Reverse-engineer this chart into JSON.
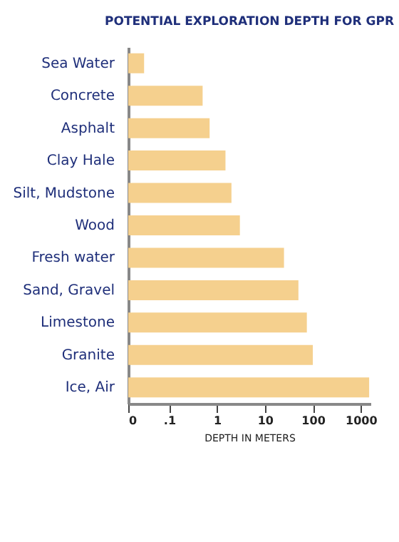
{
  "chart_data": {
    "type": "bar",
    "orientation": "horizontal",
    "log": "x",
    "title": "POTENTIAL EXPLORATION DEPTH FOR GPR",
    "xlabel": "DEPTH IN METERS",
    "categories": [
      "Sea Water",
      "Concrete",
      "Asphalt",
      "Clay Hale",
      "Silt, Mudstone",
      "Wood",
      "Fresh water",
      "Sand, Gravel",
      "Limestone",
      "Granite",
      "Ice, Air"
    ],
    "values": [
      0.03,
      0.5,
      0.7,
      1.5,
      2,
      3,
      25,
      50,
      75,
      100,
      1500
    ],
    "color": "#f5d08e",
    "xlim": [
      0.014,
      1600
    ],
    "xticks": [
      {
        "value": 0.014,
        "label": "0"
      },
      {
        "value": 0.1,
        "label": ".1"
      },
      1,
      10,
      100,
      1000
    ]
  }
}
